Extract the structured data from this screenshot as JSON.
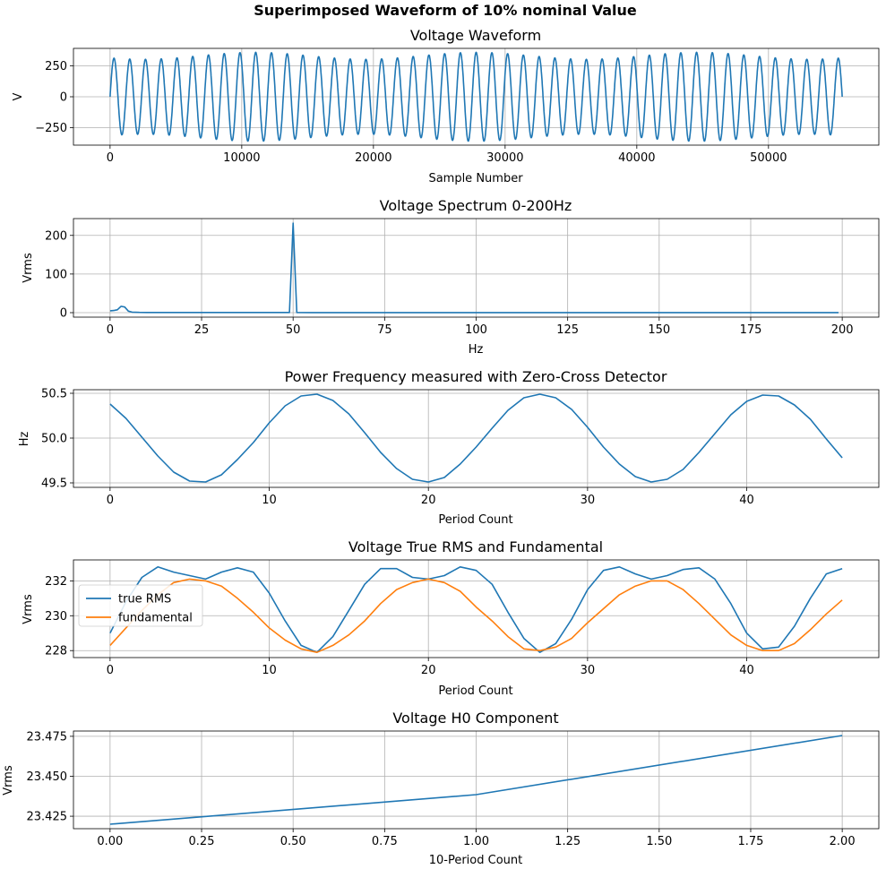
{
  "figure_title": "Superimposed Waveform of 10% nominal Value",
  "colors": {
    "series1": "#1f77b4",
    "series2": "#ff7f0e",
    "grid": "#b0b0b0",
    "axis": "#000000"
  },
  "chart_data": [
    {
      "type": "line",
      "title": "Voltage Waveform",
      "xlabel": "Sample Number",
      "ylabel": "V",
      "xlim": [
        -2780,
        58380
      ],
      "ylim": [
        -390,
        390
      ],
      "xticks": [
        0,
        10000,
        20000,
        30000,
        40000,
        50000
      ],
      "xtick_labels": [
        "0",
        "10000",
        "20000",
        "30000",
        "40000",
        "50000"
      ],
      "yticks": [
        -250,
        0,
        250
      ],
      "ytick_labels": [
        "−250",
        "0",
        "250"
      ],
      "grid": true,
      "waveform": {
        "samples": 55600,
        "cycles": 46.5,
        "mean_peak": 330,
        "peak_modulation": 28,
        "modulation_cycles": 3.3,
        "modulation_phase": 0.6
      },
      "series": [
        {
          "values": []
        }
      ]
    },
    {
      "type": "line",
      "title": "Voltage Spectrum 0-200Hz",
      "xlabel": "Hz",
      "ylabel": "Vrms",
      "xlim": [
        -10,
        210
      ],
      "ylim": [
        -11.6,
        243.5
      ],
      "xticks": [
        0,
        25,
        50,
        75,
        100,
        125,
        150,
        175,
        200
      ],
      "xtick_labels": [
        "0",
        "25",
        "50",
        "75",
        "100",
        "125",
        "150",
        "175",
        "200"
      ],
      "yticks": [
        0,
        100,
        200
      ],
      "ytick_labels": [
        "0",
        "100",
        "200"
      ],
      "grid": true,
      "series": [
        {
          "x": [
            0,
            1,
            2,
            3,
            4,
            5,
            6,
            8,
            10,
            49,
            50,
            51,
            55,
            100,
            150,
            199
          ],
          "values": [
            4.9,
            5.5,
            7.5,
            16.5,
            14.5,
            4,
            1.5,
            0.8,
            0.4,
            0.4,
            231.7,
            0.4,
            0.3,
            0.3,
            0.3,
            0.3
          ]
        }
      ]
    },
    {
      "type": "line",
      "title": "Power Frequency measured with Zero-Cross Detector",
      "xlabel": "Period Count",
      "ylabel": "Hz",
      "xlim": [
        -2.3,
        48.3
      ],
      "ylim": [
        49.45,
        50.54
      ],
      "xticks": [
        0,
        10,
        20,
        30,
        40
      ],
      "xtick_labels": [
        "0",
        "10",
        "20",
        "30",
        "40"
      ],
      "yticks": [
        49.5,
        50.0,
        50.5
      ],
      "ytick_labels": [
        "49.5",
        "50.0",
        "50.5"
      ],
      "grid": true,
      "series": [
        {
          "x": [
            0,
            1,
            2,
            3,
            4,
            5,
            6,
            7,
            8,
            9,
            10,
            11,
            12,
            13,
            14,
            15,
            16,
            17,
            18,
            19,
            20,
            21,
            22,
            23,
            24,
            25,
            26,
            27,
            28,
            29,
            30,
            31,
            32,
            33,
            34,
            35,
            36,
            37,
            38,
            39,
            40,
            41,
            42,
            43,
            44,
            45,
            46
          ],
          "values": [
            50.38,
            50.22,
            50.01,
            49.8,
            49.62,
            49.52,
            49.51,
            49.59,
            49.76,
            49.95,
            50.17,
            50.36,
            50.47,
            50.49,
            50.42,
            50.27,
            50.06,
            49.84,
            49.66,
            49.54,
            49.51,
            49.56,
            49.71,
            49.9,
            50.11,
            50.31,
            50.45,
            50.49,
            50.45,
            50.32,
            50.12,
            49.9,
            49.71,
            49.57,
            49.51,
            49.54,
            49.65,
            49.84,
            50.05,
            50.26,
            50.41,
            50.48,
            50.47,
            50.37,
            50.21,
            49.99,
            49.78
          ]
        }
      ]
    },
    {
      "type": "line",
      "title": "Voltage True RMS and Fundamental",
      "xlabel": "Period Count",
      "ylabel": "Vrms",
      "xlim": [
        -2.3,
        48.3
      ],
      "ylim": [
        227.6,
        233.2
      ],
      "xticks": [
        0,
        10,
        20,
        30,
        40
      ],
      "xtick_labels": [
        "0",
        "10",
        "20",
        "30",
        "40"
      ],
      "yticks": [
        228,
        230,
        232
      ],
      "ytick_labels": [
        "228",
        "230",
        "232"
      ],
      "grid": true,
      "legend": "upper-left",
      "series": [
        {
          "name": "true RMS",
          "x": [
            0,
            1,
            2,
            3,
            4,
            5,
            6,
            7,
            8,
            9,
            10,
            11,
            12,
            13,
            14,
            15,
            16,
            17,
            18,
            19,
            20,
            21,
            22,
            23,
            24,
            25,
            26,
            27,
            28,
            29,
            30,
            31,
            32,
            33,
            34,
            35,
            36,
            37,
            38,
            39,
            40,
            41,
            42,
            43,
            44,
            45,
            46
          ],
          "values": [
            229.0,
            230.8,
            232.2,
            232.8,
            232.5,
            232.3,
            232.1,
            232.5,
            232.75,
            232.5,
            231.3,
            229.7,
            228.3,
            227.9,
            228.8,
            230.3,
            231.8,
            232.7,
            232.7,
            232.2,
            232.1,
            232.3,
            232.8,
            232.6,
            231.8,
            230.2,
            228.7,
            227.9,
            228.4,
            229.8,
            231.5,
            232.6,
            232.8,
            232.4,
            232.1,
            232.3,
            232.65,
            232.75,
            232.1,
            230.7,
            229.0,
            228.1,
            228.2,
            229.4,
            231.0,
            232.4,
            232.7
          ]
        },
        {
          "name": "fundamental",
          "x": [
            0,
            1,
            2,
            3,
            4,
            5,
            6,
            7,
            8,
            9,
            10,
            11,
            12,
            13,
            14,
            15,
            16,
            17,
            18,
            19,
            20,
            21,
            22,
            23,
            24,
            25,
            26,
            27,
            28,
            29,
            30,
            31,
            32,
            33,
            34,
            35,
            36,
            37,
            38,
            39,
            40,
            41,
            42,
            43,
            44,
            45,
            46
          ],
          "values": [
            228.3,
            229.3,
            230.3,
            231.2,
            231.9,
            232.1,
            232.0,
            231.7,
            231.0,
            230.2,
            229.3,
            228.6,
            228.1,
            227.9,
            228.3,
            228.9,
            229.7,
            230.7,
            231.5,
            231.9,
            232.1,
            231.9,
            231.4,
            230.5,
            229.7,
            228.8,
            228.1,
            228.0,
            228.2,
            228.7,
            229.6,
            230.4,
            231.2,
            231.7,
            232.0,
            232.0,
            231.5,
            230.7,
            229.8,
            228.9,
            228.3,
            228.0,
            228.0,
            228.4,
            229.2,
            230.1,
            230.9
          ]
        }
      ]
    },
    {
      "type": "line",
      "title": "Voltage H0 Component",
      "xlabel": "10-Period Count",
      "ylabel": "Vrms",
      "xlim": [
        -0.1,
        2.1
      ],
      "ylim": [
        23.4172,
        23.4783
      ],
      "xticks": [
        0,
        0.25,
        0.5,
        0.75,
        1.0,
        1.25,
        1.5,
        1.75,
        2.0
      ],
      "xtick_labels": [
        "0.00",
        "0.25",
        "0.50",
        "0.75",
        "1.00",
        "1.25",
        "1.50",
        "1.75",
        "2.00"
      ],
      "yticks": [
        23.425,
        23.45,
        23.475
      ],
      "ytick_labels": [
        "23.425",
        "23.450",
        "23.475"
      ],
      "grid": true,
      "series": [
        {
          "x": [
            0,
            1,
            2
          ],
          "values": [
            23.42,
            23.4385,
            23.4755
          ]
        }
      ]
    }
  ]
}
